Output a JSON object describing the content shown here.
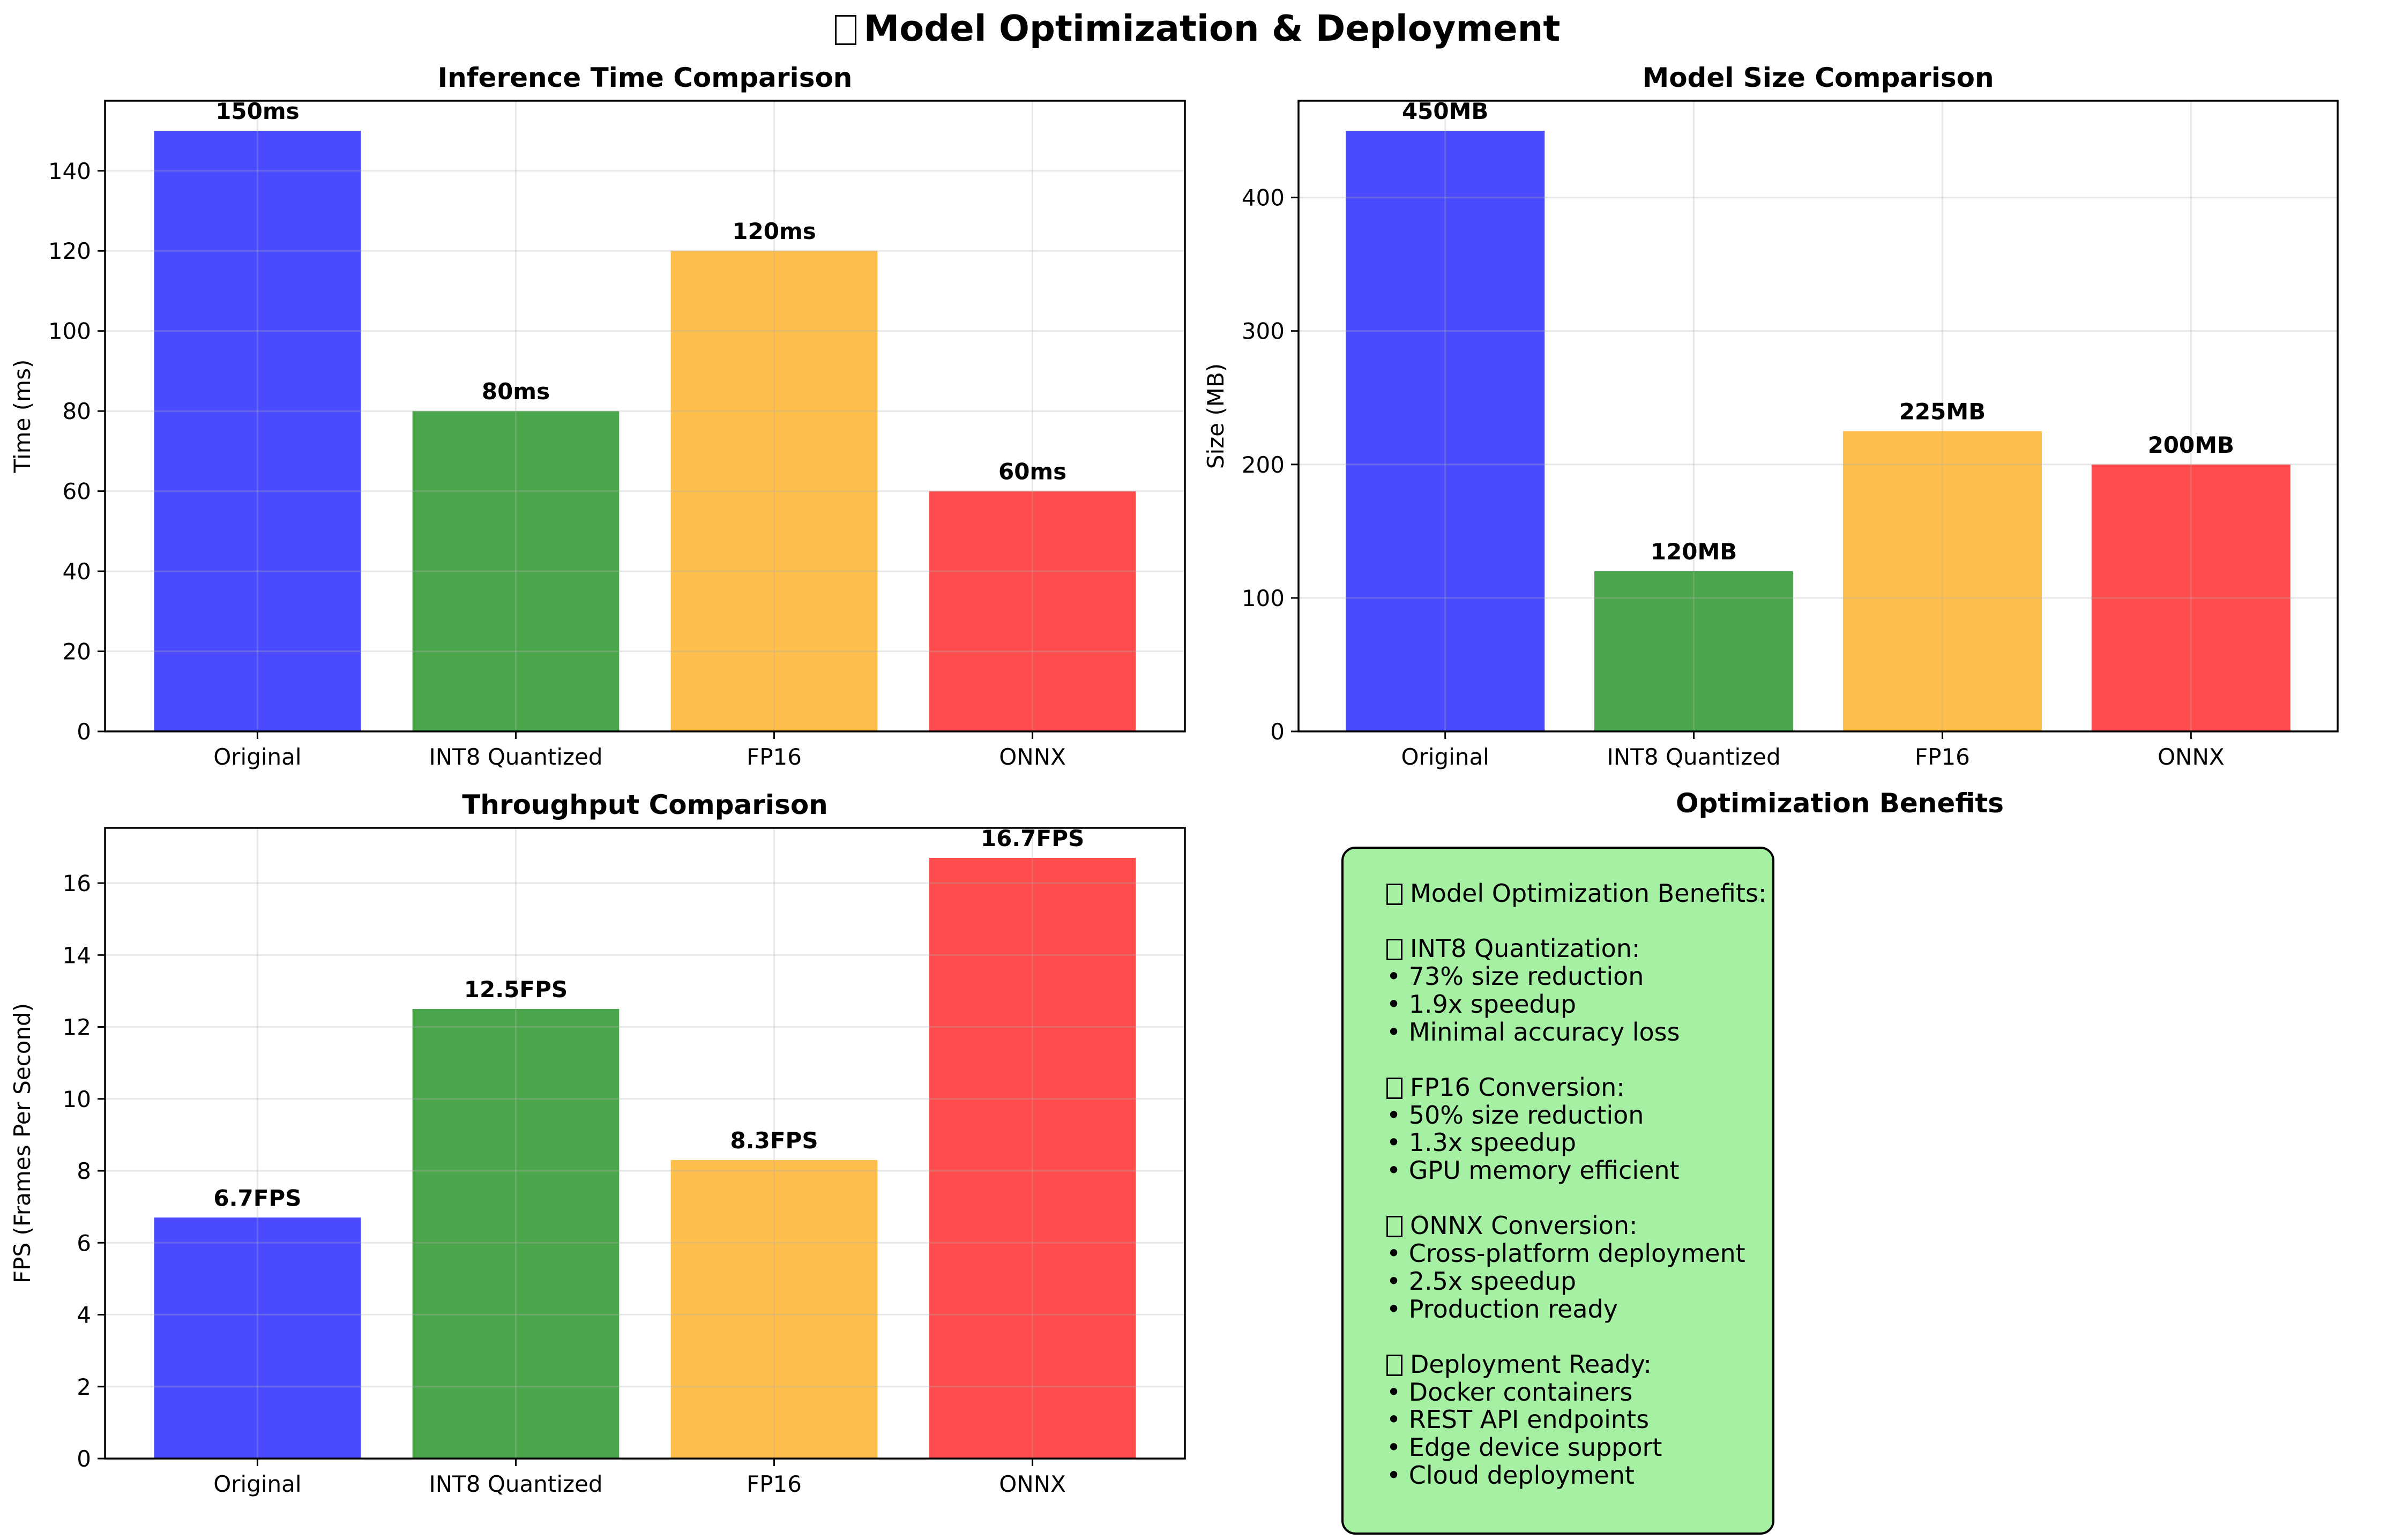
{
  "figure": {
    "title": "Model Optimization & Deployment",
    "title_icon": "missing-glyph-box"
  },
  "chart_data": [
    {
      "type": "bar",
      "title": "Inference Time Comparison",
      "xlabel": "",
      "ylabel": "Time (ms)",
      "categories": [
        "Original",
        "INT8 Quantized",
        "FP16",
        "ONNX"
      ],
      "values": [
        150,
        80,
        120,
        60
      ],
      "data_labels": [
        "150ms",
        "80ms",
        "120ms",
        "60ms"
      ],
      "colors": [
        "#4a4aff",
        "#4ca64c",
        "#ffbf4c",
        "#ff4c4c"
      ],
      "ylim": [
        0,
        157.5
      ],
      "yticks": [
        0,
        20,
        40,
        60,
        80,
        100,
        120,
        140
      ],
      "grid": true
    },
    {
      "type": "bar",
      "title": "Model Size Comparison",
      "xlabel": "",
      "ylabel": "Size (MB)",
      "categories": [
        "Original",
        "INT8 Quantized",
        "FP16",
        "ONNX"
      ],
      "values": [
        450,
        120,
        225,
        200
      ],
      "data_labels": [
        "450MB",
        "120MB",
        "225MB",
        "200MB"
      ],
      "colors": [
        "#4a4aff",
        "#4ca64c",
        "#ffbf4c",
        "#ff4c4c"
      ],
      "ylim": [
        0,
        472.5
      ],
      "yticks": [
        0,
        100,
        200,
        300,
        400
      ],
      "grid": true
    },
    {
      "type": "bar",
      "title": "Throughput Comparison",
      "xlabel": "",
      "ylabel": "FPS (Frames Per Second)",
      "categories": [
        "Original",
        "INT8 Quantized",
        "FP16",
        "ONNX"
      ],
      "values": [
        6.7,
        12.5,
        8.3,
        16.7
      ],
      "data_labels": [
        "6.7FPS",
        "12.5FPS",
        "8.3FPS",
        "16.7FPS"
      ],
      "colors": [
        "#4a4aff",
        "#4ca64c",
        "#ffbf4c",
        "#ff4c4c"
      ],
      "ylim": [
        0,
        17.535
      ],
      "yticks": [
        0,
        2,
        4,
        6,
        8,
        10,
        12,
        14,
        16
      ],
      "grid": true
    }
  ],
  "benefits": {
    "title": "Optimization Benefits",
    "lines": [
      {
        "icon": true,
        "text": "Model Optimization Benefits:"
      },
      {
        "icon": false,
        "text": ""
      },
      {
        "icon": true,
        "text": "INT8 Quantization:"
      },
      {
        "icon": false,
        "text": "• 73% size reduction"
      },
      {
        "icon": false,
        "text": "• 1.9x speedup"
      },
      {
        "icon": false,
        "text": "• Minimal accuracy loss"
      },
      {
        "icon": false,
        "text": ""
      },
      {
        "icon": true,
        "text": "FP16 Conversion:"
      },
      {
        "icon": false,
        "text": "• 50% size reduction"
      },
      {
        "icon": false,
        "text": "• 1.3x speedup"
      },
      {
        "icon": false,
        "text": "• GPU memory efficient"
      },
      {
        "icon": false,
        "text": ""
      },
      {
        "icon": true,
        "text": "ONNX Conversion:"
      },
      {
        "icon": false,
        "text": "• Cross-platform deployment"
      },
      {
        "icon": false,
        "text": "• 2.5x speedup"
      },
      {
        "icon": false,
        "text": "• Production ready"
      },
      {
        "icon": false,
        "text": ""
      },
      {
        "icon": true,
        "text": "Deployment Ready:"
      },
      {
        "icon": false,
        "text": "• Docker containers"
      },
      {
        "icon": false,
        "text": "• REST API endpoints"
      },
      {
        "icon": false,
        "text": "• Edge device support"
      },
      {
        "icon": false,
        "text": "• Cloud deployment"
      }
    ],
    "box_color": "#a6f0a3"
  }
}
